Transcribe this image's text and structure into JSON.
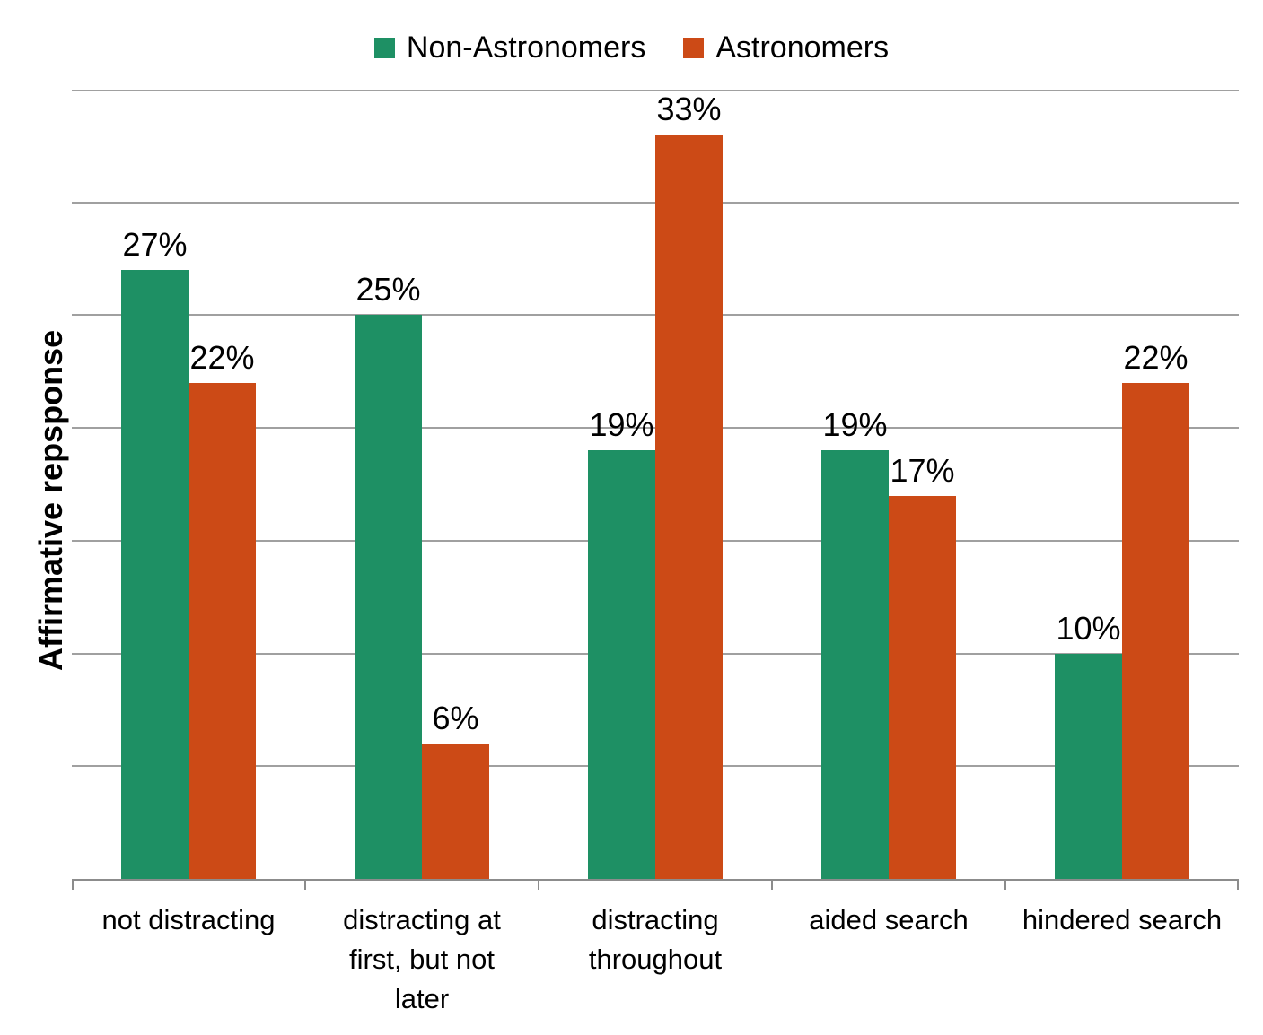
{
  "chart_data": {
    "type": "bar",
    "title": "",
    "xlabel": "",
    "ylabel": "Affirmative repsponse",
    "ylim": [
      0,
      35
    ],
    "grid": true,
    "grid_interval": 5,
    "y_tick_labels_visible": false,
    "legend_position": "top",
    "value_suffix": "%",
    "categories": [
      "not distracting",
      "distracting at first, but not later",
      "distracting throughout",
      "aided search",
      "hindered search"
    ],
    "category_lines": [
      [
        "not distracting"
      ],
      [
        "distracting at",
        "first, but not",
        "later"
      ],
      [
        "distracting",
        "throughout"
      ],
      [
        "aided search"
      ],
      [
        "hindered search"
      ]
    ],
    "series": [
      {
        "name": "Non-Astronomers",
        "color": "#1E9064",
        "values": [
          27,
          25,
          19,
          19,
          10
        ],
        "labels": [
          "27%",
          "25%",
          "19%",
          "19%",
          "10%"
        ]
      },
      {
        "name": "Astronomers",
        "color": "#CC4A16",
        "values": [
          22,
          6,
          33,
          17,
          22
        ],
        "labels": [
          "22%",
          "6%",
          "33%",
          "17%",
          "22%"
        ]
      }
    ]
  },
  "colors": {
    "background": "#ffffff",
    "gridline": "#A0A0A0",
    "axis": "#8C8C8C",
    "text": "#000000"
  }
}
